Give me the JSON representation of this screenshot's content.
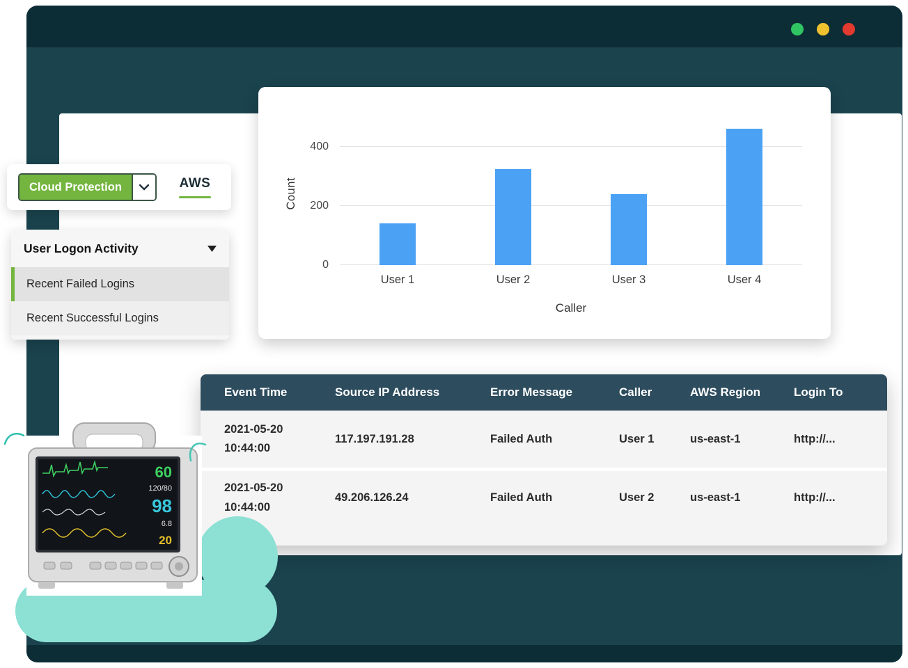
{
  "window": {
    "traffic_lights": {
      "green": "#30c463",
      "yellow": "#f0c12e",
      "red": "#e23a2e"
    }
  },
  "filter": {
    "dropdown_label": "Cloud Protection",
    "tab_label": "AWS"
  },
  "logon_panel": {
    "title": "User Logon Activity",
    "items": [
      {
        "label": "Recent Failed Logins",
        "selected": true
      },
      {
        "label": "Recent Successful Logins",
        "selected": false
      }
    ]
  },
  "chart_data": {
    "type": "bar",
    "categories": [
      "User 1",
      "User 2",
      "User 3",
      "User 4"
    ],
    "values": [
      140,
      325,
      240,
      460
    ],
    "title": "",
    "xlabel": "Caller",
    "ylabel": "Count",
    "ylim": [
      0,
      500
    ],
    "yticks": [
      0,
      200,
      400
    ],
    "bar_color": "#4ba1f4",
    "grid": true,
    "legend": false
  },
  "table": {
    "headers": [
      "Event Time",
      "Source IP Address",
      "Error Message",
      "Caller",
      "AWS Region",
      "Login To"
    ],
    "rows": [
      [
        "2021-05-20\n10:44:00",
        "117.197.191.28",
        "Failed Auth",
        "User 1",
        "us-east-1",
        "http://..."
      ],
      [
        "2021-05-20\n10:44:00",
        "49.206.126.24",
        "Failed Auth",
        "User 2",
        "us-east-1",
        "http://..."
      ]
    ]
  },
  "monitor": {
    "values": {
      "hr": "60",
      "bp": "120/80",
      "spo2": "98",
      "temp": "6.8",
      "resp": "20"
    }
  },
  "colors": {
    "accent_green": "#73b53e",
    "window_dark": "#1a434e",
    "window_darker": "#0d2d36",
    "header_slate": "#2d4c5e",
    "cloud_teal": "#8ce0d4"
  }
}
